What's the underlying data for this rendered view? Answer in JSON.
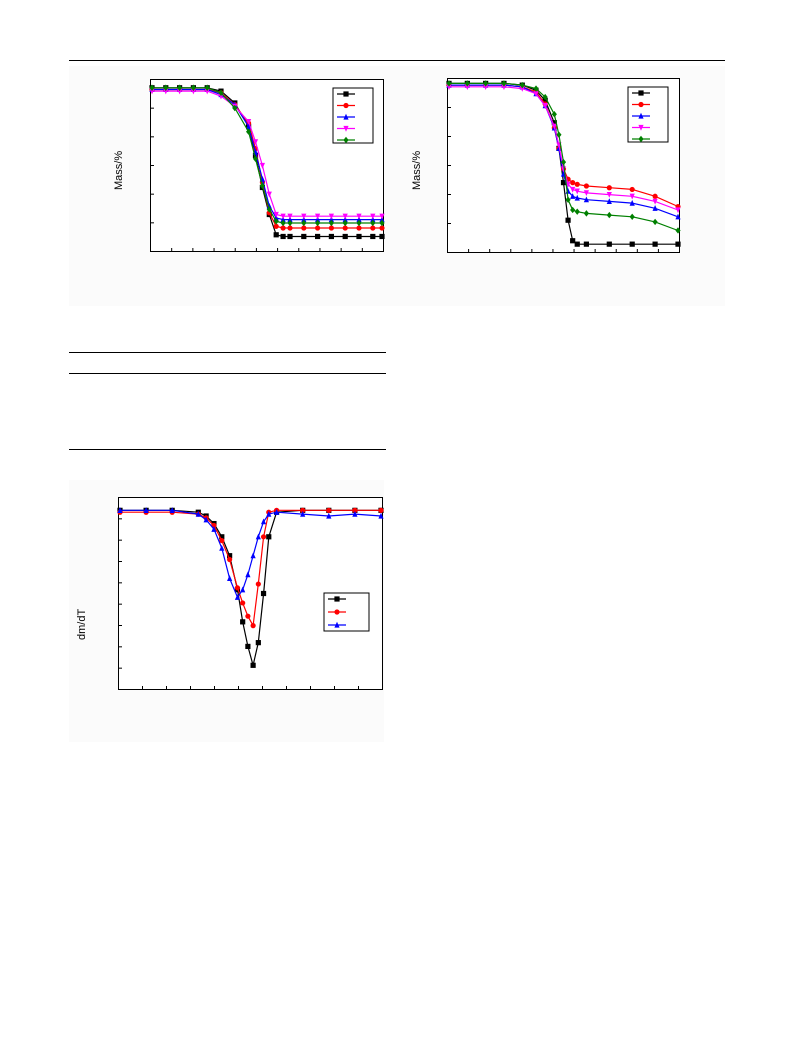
{
  "chart_data": [
    {
      "type": "line",
      "ylabel": "Mass/%",
      "xlim": [
        0,
        100
      ],
      "ylim": [
        0,
        100
      ],
      "series": [
        {
          "color": "#000000",
          "marker": "square",
          "x": [
            0,
            6,
            12,
            18,
            24,
            30,
            36,
            42,
            45,
            48,
            51,
            54,
            57,
            60,
            66,
            72,
            78,
            84,
            90,
            96,
            100
          ],
          "y": [
            96,
            96,
            96,
            96,
            96,
            94,
            87,
            73,
            56,
            37,
            21,
            9,
            8,
            8,
            8,
            8,
            8,
            8,
            8,
            8,
            8
          ]
        },
        {
          "color": "#ff0000",
          "marker": "circle",
          "x": [
            0,
            6,
            12,
            18,
            24,
            30,
            36,
            42,
            45,
            48,
            51,
            54,
            57,
            60,
            66,
            72,
            78,
            84,
            90,
            96,
            100
          ],
          "y": [
            95,
            95,
            95,
            95,
            95,
            93,
            86,
            75,
            60,
            40,
            22,
            14,
            13,
            13,
            13,
            13,
            13,
            13,
            13,
            13,
            13
          ]
        },
        {
          "color": "#0000ff",
          "marker": "triangle-up",
          "x": [
            0,
            6,
            12,
            18,
            24,
            30,
            36,
            42,
            45,
            48,
            51,
            54,
            57,
            60,
            66,
            72,
            78,
            84,
            90,
            96,
            100
          ],
          "y": [
            95,
            95,
            95,
            95,
            95,
            92,
            86,
            73,
            58,
            42,
            26,
            19,
            18,
            18,
            18,
            18,
            18,
            18,
            18,
            18,
            18
          ]
        },
        {
          "color": "#ff00ff",
          "marker": "triangle-down",
          "x": [
            0,
            6,
            12,
            18,
            24,
            30,
            36,
            42,
            45,
            48,
            51,
            54,
            57,
            60,
            66,
            72,
            78,
            84,
            90,
            96,
            100
          ],
          "y": [
            94,
            94,
            94,
            94,
            94,
            91,
            85,
            76,
            64,
            50,
            33,
            21,
            20,
            20,
            20,
            20,
            20,
            20,
            20,
            20,
            20
          ]
        },
        {
          "color": "#008000",
          "marker": "diamond",
          "x": [
            0,
            6,
            12,
            18,
            24,
            30,
            36,
            42,
            45,
            48,
            51,
            54,
            57,
            60,
            66,
            72,
            78,
            84,
            90,
            96,
            100
          ],
          "y": [
            96,
            96,
            96,
            96,
            96,
            93,
            84,
            70,
            54,
            38,
            24,
            17,
            16,
            16,
            16,
            16,
            16,
            16,
            16,
            16,
            16
          ]
        }
      ]
    },
    {
      "type": "line",
      "ylabel": "Mass/%",
      "xlim": [
        0,
        100
      ],
      "ylim": [
        0,
        100
      ],
      "series": [
        {
          "color": "#000000",
          "marker": "square",
          "x": [
            0,
            8,
            16,
            24,
            32,
            38,
            42,
            46,
            48,
            50,
            52,
            54,
            56,
            60,
            70,
            80,
            90,
            100
          ],
          "y": [
            98,
            98,
            98,
            98,
            97,
            94,
            88,
            75,
            60,
            40,
            18,
            6,
            4,
            4,
            4,
            4,
            4,
            4
          ]
        },
        {
          "color": "#ff0000",
          "marker": "circle",
          "x": [
            0,
            8,
            16,
            24,
            32,
            38,
            42,
            46,
            48,
            50,
            52,
            54,
            56,
            60,
            70,
            80,
            90,
            100
          ],
          "y": [
            97,
            97,
            97,
            97,
            96,
            93,
            86,
            72,
            60,
            48,
            42,
            40,
            39,
            38,
            37,
            36,
            32,
            26
          ]
        },
        {
          "color": "#0000ff",
          "marker": "triangle-up",
          "x": [
            0,
            8,
            16,
            24,
            32,
            38,
            42,
            46,
            48,
            50,
            52,
            54,
            56,
            60,
            70,
            80,
            90,
            100
          ],
          "y": [
            97,
            97,
            97,
            97,
            96,
            92,
            85,
            72,
            60,
            45,
            35,
            32,
            31,
            30,
            29,
            28,
            25,
            20
          ]
        },
        {
          "color": "#ff00ff",
          "marker": "triangle-down",
          "x": [
            0,
            8,
            16,
            24,
            32,
            38,
            42,
            46,
            48,
            50,
            52,
            54,
            56,
            60,
            70,
            80,
            90,
            100
          ],
          "y": [
            96,
            96,
            96,
            96,
            95,
            92,
            85,
            73,
            62,
            48,
            39,
            36,
            35,
            34,
            33,
            32,
            29,
            24
          ]
        },
        {
          "color": "#008000",
          "marker": "diamond",
          "x": [
            0,
            8,
            16,
            24,
            32,
            38,
            42,
            46,
            48,
            50,
            52,
            54,
            56,
            60,
            70,
            80,
            90,
            100
          ],
          "y": [
            98,
            98,
            98,
            98,
            97,
            95,
            90,
            80,
            68,
            52,
            30,
            24,
            23,
            22,
            21,
            20,
            17,
            12
          ]
        }
      ]
    },
    {
      "type": "line",
      "ylabel": "dm/dT",
      "xlim": [
        0,
        100
      ],
      "ylim": [
        0,
        100
      ],
      "series": [
        {
          "color": "#000000",
          "marker": "square",
          "x": [
            0,
            10,
            20,
            30,
            33,
            36,
            39,
            42,
            45,
            47,
            49,
            51,
            53,
            55,
            57,
            60,
            70,
            80,
            90,
            100
          ],
          "y": [
            94,
            94,
            94,
            93,
            91,
            87,
            80,
            70,
            52,
            35,
            22,
            12,
            24,
            50,
            80,
            93,
            94,
            94,
            94,
            94
          ]
        },
        {
          "color": "#ff0000",
          "marker": "circle",
          "x": [
            0,
            10,
            20,
            30,
            33,
            36,
            39,
            42,
            45,
            47,
            49,
            51,
            53,
            55,
            57,
            60,
            70,
            80,
            90,
            100
          ],
          "y": [
            93,
            93,
            93,
            92,
            90,
            86,
            78,
            68,
            53,
            45,
            38,
            33,
            55,
            80,
            93,
            94,
            94,
            94,
            94,
            94
          ]
        },
        {
          "color": "#0000ff",
          "marker": "triangle-up",
          "x": [
            0,
            10,
            20,
            30,
            33,
            36,
            39,
            42,
            45,
            47,
            49,
            51,
            53,
            55,
            57,
            60,
            70,
            80,
            90,
            100
          ],
          "y": [
            94,
            94,
            94,
            92,
            89,
            84,
            74,
            58,
            48,
            52,
            60,
            70,
            80,
            88,
            92,
            93,
            92,
            91,
            92,
            91
          ]
        }
      ]
    }
  ]
}
